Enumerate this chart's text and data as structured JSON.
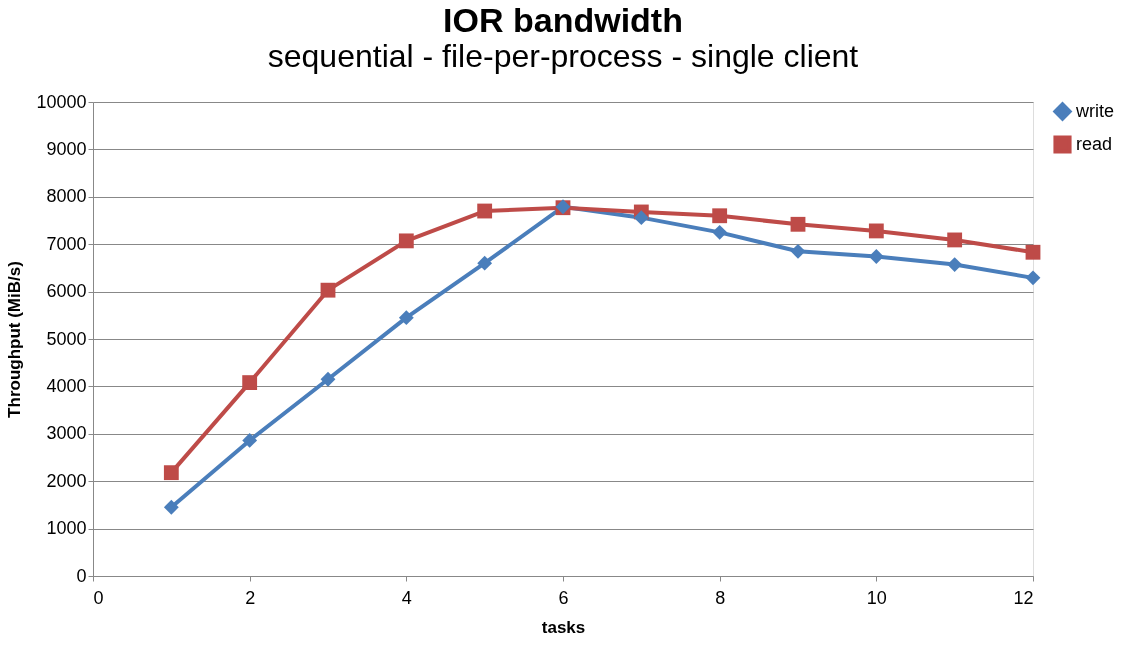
{
  "chart_data": {
    "type": "line",
    "title": "IOR bandwidth",
    "subtitle": "sequential - file-per-process - single client",
    "xlabel": "tasks",
    "ylabel": "Throughput (MiB/s)",
    "x": [
      1,
      2,
      3,
      4,
      5,
      6,
      7,
      8,
      9,
      10,
      11,
      12
    ],
    "series": [
      {
        "name": "write",
        "color": "#4a7ebb",
        "marker": "diamond",
        "values": [
          1450,
          2860,
          4150,
          5450,
          6600,
          7790,
          7560,
          7250,
          6850,
          6740,
          6570,
          6290
        ]
      },
      {
        "name": "read",
        "color": "#be4b48",
        "marker": "square",
        "values": [
          2180,
          4080,
          6030,
          7070,
          7700,
          7770,
          7680,
          7600,
          7420,
          7280,
          7090,
          6830
        ]
      }
    ],
    "xlim": [
      0,
      12
    ],
    "xticks": [
      0,
      2,
      4,
      6,
      8,
      10,
      12
    ],
    "ylim": [
      0,
      10000
    ],
    "yticks": [
      0,
      1000,
      2000,
      3000,
      4000,
      5000,
      6000,
      7000,
      8000,
      9000,
      10000
    ],
    "grid": "y",
    "legend": "right",
    "line_style": "solid"
  }
}
